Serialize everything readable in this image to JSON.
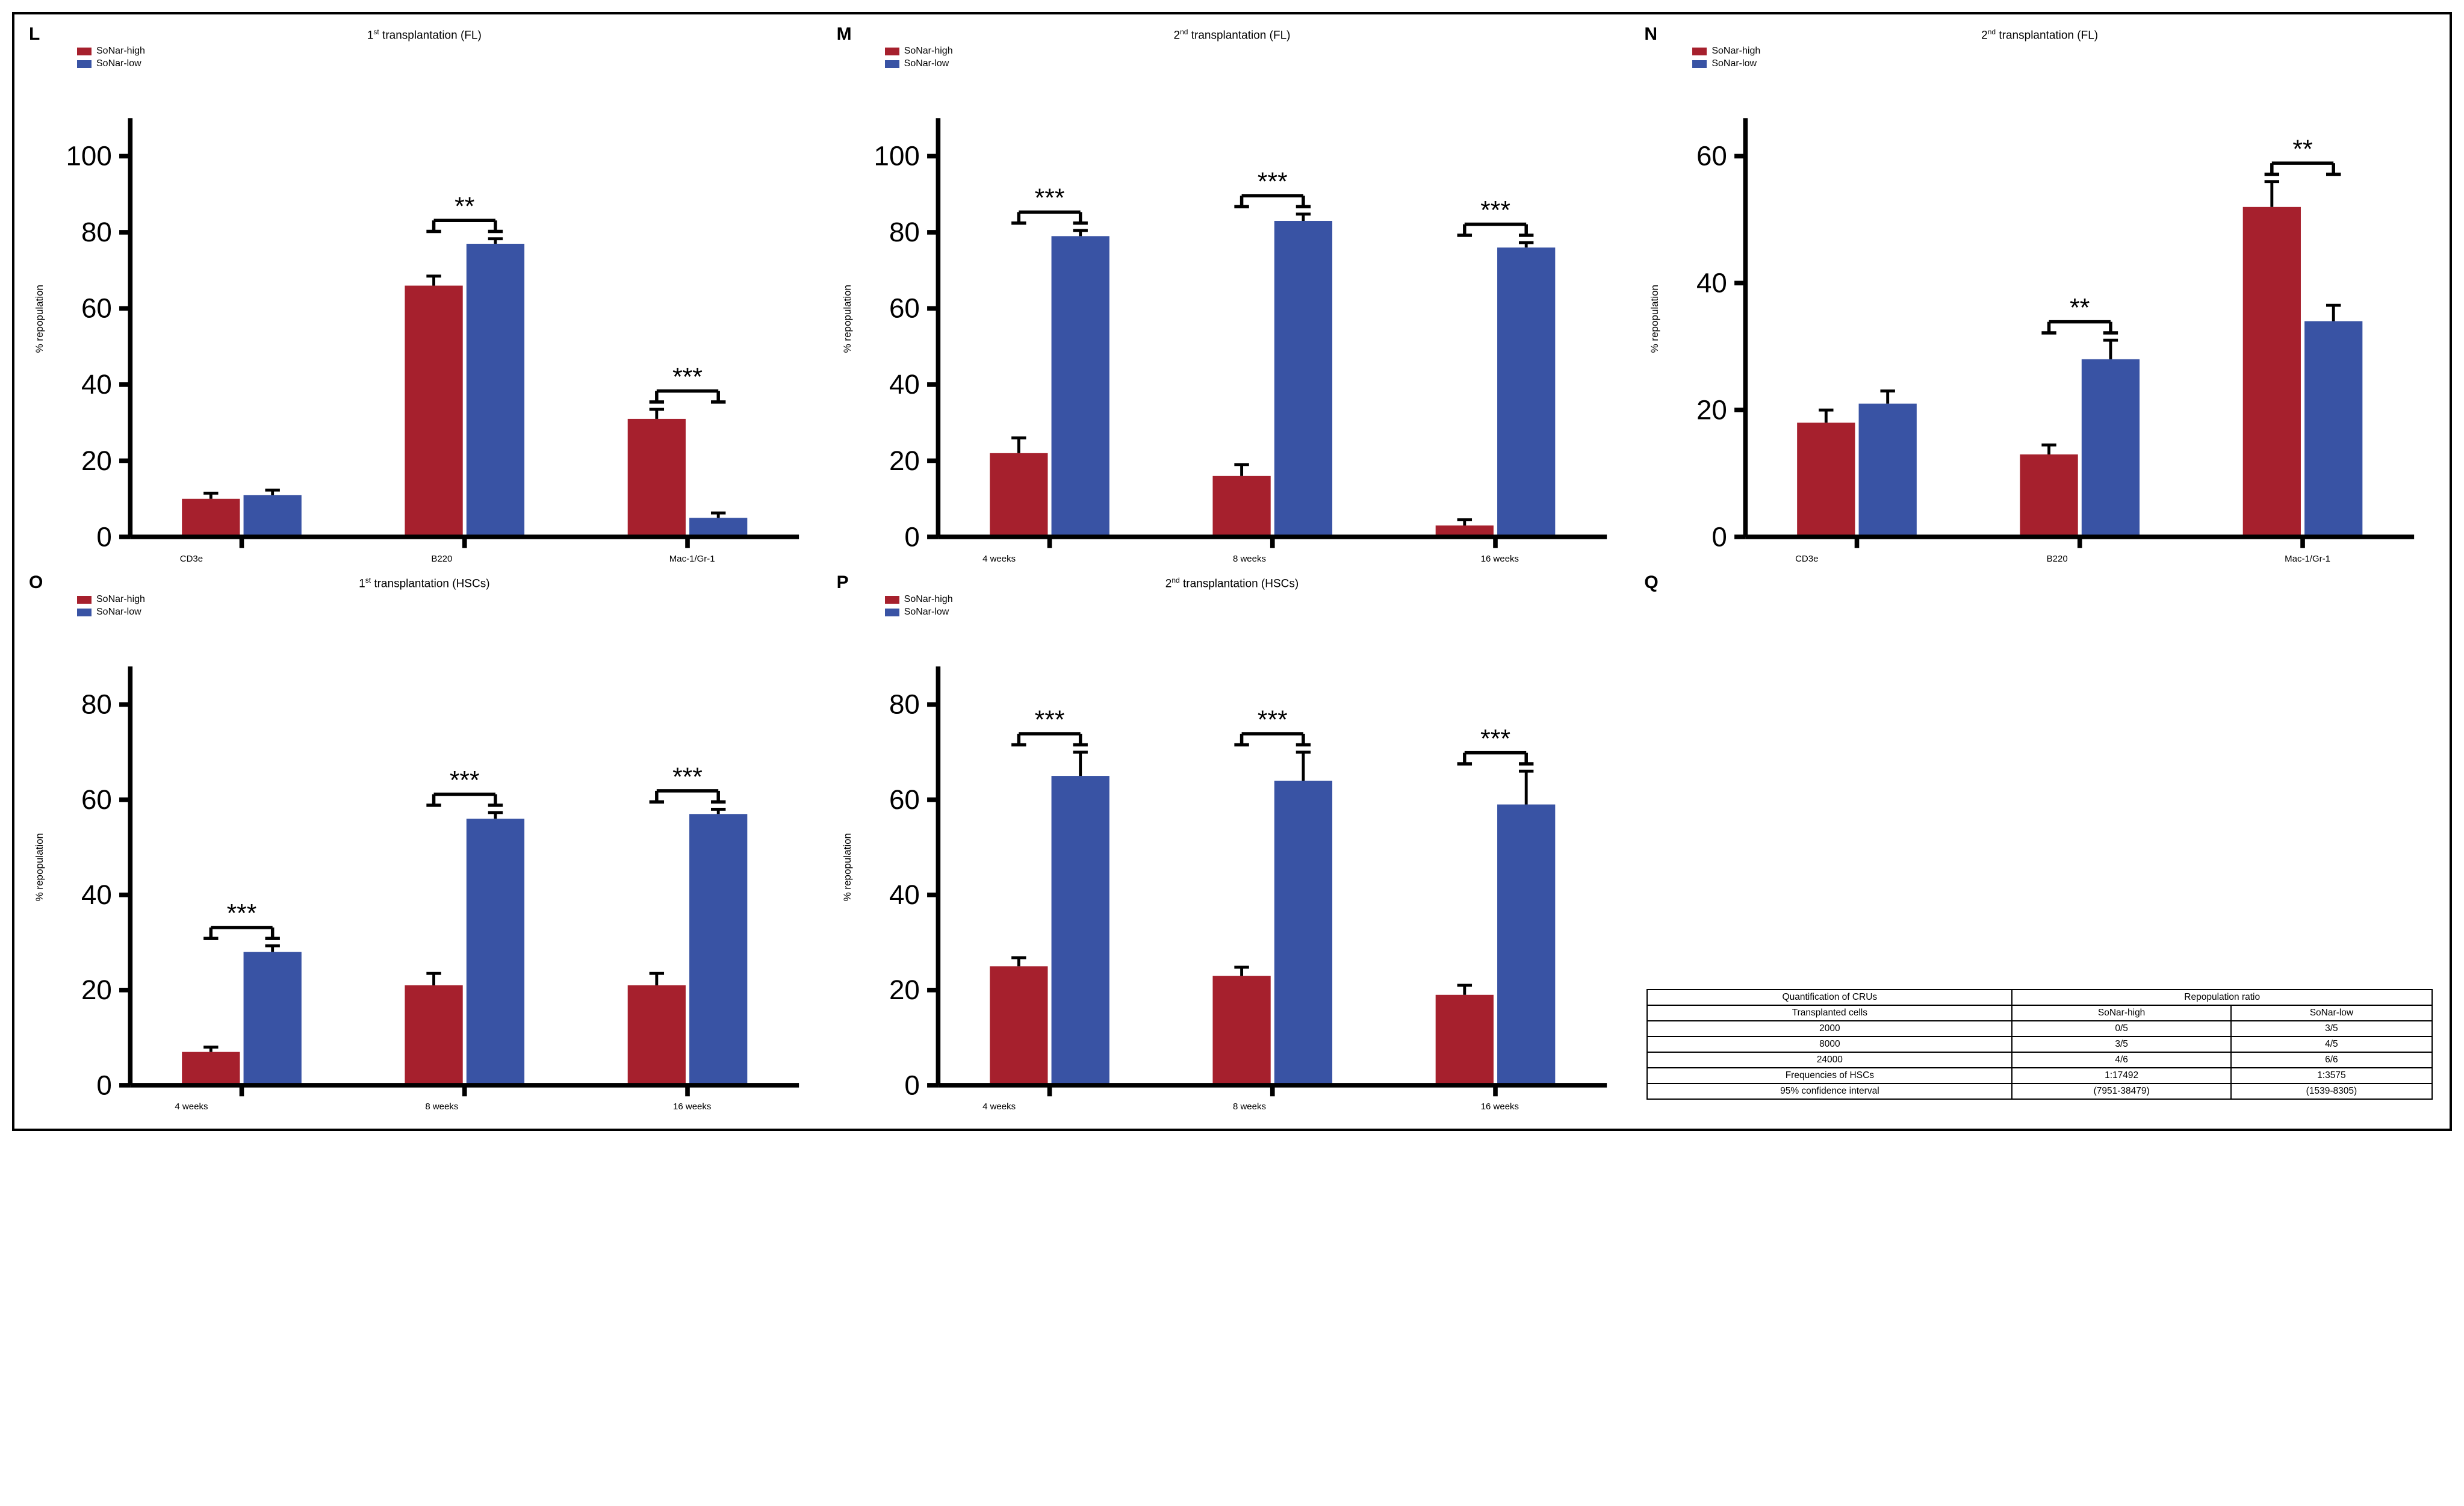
{
  "colors": {
    "sonar_high": "#a6202d",
    "sonar_low": "#3953a4",
    "axis": "#000000",
    "tick": "#000000",
    "bg": "#ffffff"
  },
  "legend_labels": {
    "high": "SoNar-high",
    "low": "SoNar-low"
  },
  "axis": {
    "ylabel": "% repopulation",
    "tick_len": 6,
    "axis_width": 2.5
  },
  "panels": {
    "L": {
      "letter": "L",
      "title_html": "1<sup>st</sup> transplantation (FL)",
      "ymax": 110,
      "ystep": 20,
      "yticklabels": [
        0,
        20,
        40,
        60,
        80,
        100
      ],
      "categories": [
        "CD3e",
        "B220",
        "Mac-1/Gr-1"
      ],
      "high": [
        10,
        66,
        31
      ],
      "high_err": [
        1.5,
        2.5,
        2.5
      ],
      "low": [
        11,
        77,
        5
      ],
      "low_err": [
        1.3,
        1.3,
        1.3
      ],
      "sig": [
        "",
        "**",
        "***"
      ]
    },
    "M": {
      "letter": "M",
      "title_html": "2<sup>nd</sup> transplantation (FL)",
      "ymax": 110,
      "ystep": 20,
      "yticklabels": [
        0,
        20,
        40,
        60,
        80,
        100
      ],
      "categories": [
        "4 weeks",
        "8 weeks",
        "16 weeks"
      ],
      "high": [
        22,
        16,
        3
      ],
      "high_err": [
        4,
        3,
        1.5
      ],
      "low": [
        79,
        83,
        76
      ],
      "low_err": [
        1.5,
        1.8,
        1.3
      ],
      "sig": [
        "***",
        "***",
        "***"
      ]
    },
    "N": {
      "letter": "N",
      "title_html": "2<sup>nd</sup> transplantation (FL)",
      "ymax": 66,
      "ystep": 20,
      "yticklabels": [
        0,
        20,
        40,
        60
      ],
      "categories": [
        "CD3e",
        "B220",
        "Mac-1/Gr-1"
      ],
      "high": [
        18,
        13,
        52
      ],
      "high_err": [
        2,
        1.5,
        4
      ],
      "low": [
        21,
        28,
        34
      ],
      "low_err": [
        2,
        3,
        2.5
      ],
      "sig": [
        "",
        "**",
        "**"
      ]
    },
    "O": {
      "letter": "O",
      "title_html": "1<sup>st</sup> transplantation (HSCs)",
      "ymax": 88,
      "ystep": 20,
      "yticklabels": [
        0,
        20,
        40,
        60,
        80
      ],
      "categories": [
        "4 weeks",
        "8 weeks",
        "16 weeks"
      ],
      "high": [
        7,
        21,
        21
      ],
      "high_err": [
        1,
        2.5,
        2.5
      ],
      "low": [
        28,
        56,
        57
      ],
      "low_err": [
        1.3,
        1.3,
        1
      ],
      "sig": [
        "***",
        "***",
        "***"
      ]
    },
    "P": {
      "letter": "P",
      "title_html": "2<sup>nd</sup> transplantation (HSCs)",
      "ymax": 88,
      "ystep": 20,
      "yticklabels": [
        0,
        20,
        40,
        60,
        80
      ],
      "categories": [
        "4 weeks",
        "8 weeks",
        "16 weeks"
      ],
      "high": [
        25,
        23,
        19
      ],
      "high_err": [
        1.8,
        1.8,
        2
      ],
      "low": [
        65,
        64,
        59
      ],
      "low_err": [
        5,
        6,
        7
      ],
      "sig": [
        "***",
        "***",
        "***"
      ]
    }
  },
  "bar_style": {
    "group_gap": 0.14,
    "bar_w": 0.26,
    "cap_w": 4
  },
  "table": {
    "letter": "Q",
    "header1": [
      "Quantification of CRUs",
      "Repopulation ratio"
    ],
    "header2": [
      "Transplanted cells",
      "SoNar-high",
      "SoNar-low"
    ],
    "rows": [
      [
        "2000",
        "0/5",
        "3/5"
      ],
      [
        "8000",
        "3/5",
        "4/5"
      ],
      [
        "24000",
        "4/6",
        "6/6"
      ],
      [
        "Frequencies of HSCs",
        "1:17492",
        "1:3575"
      ],
      [
        "95% confidence interval",
        "(7951-38479)",
        "(1539-8305)"
      ]
    ]
  }
}
